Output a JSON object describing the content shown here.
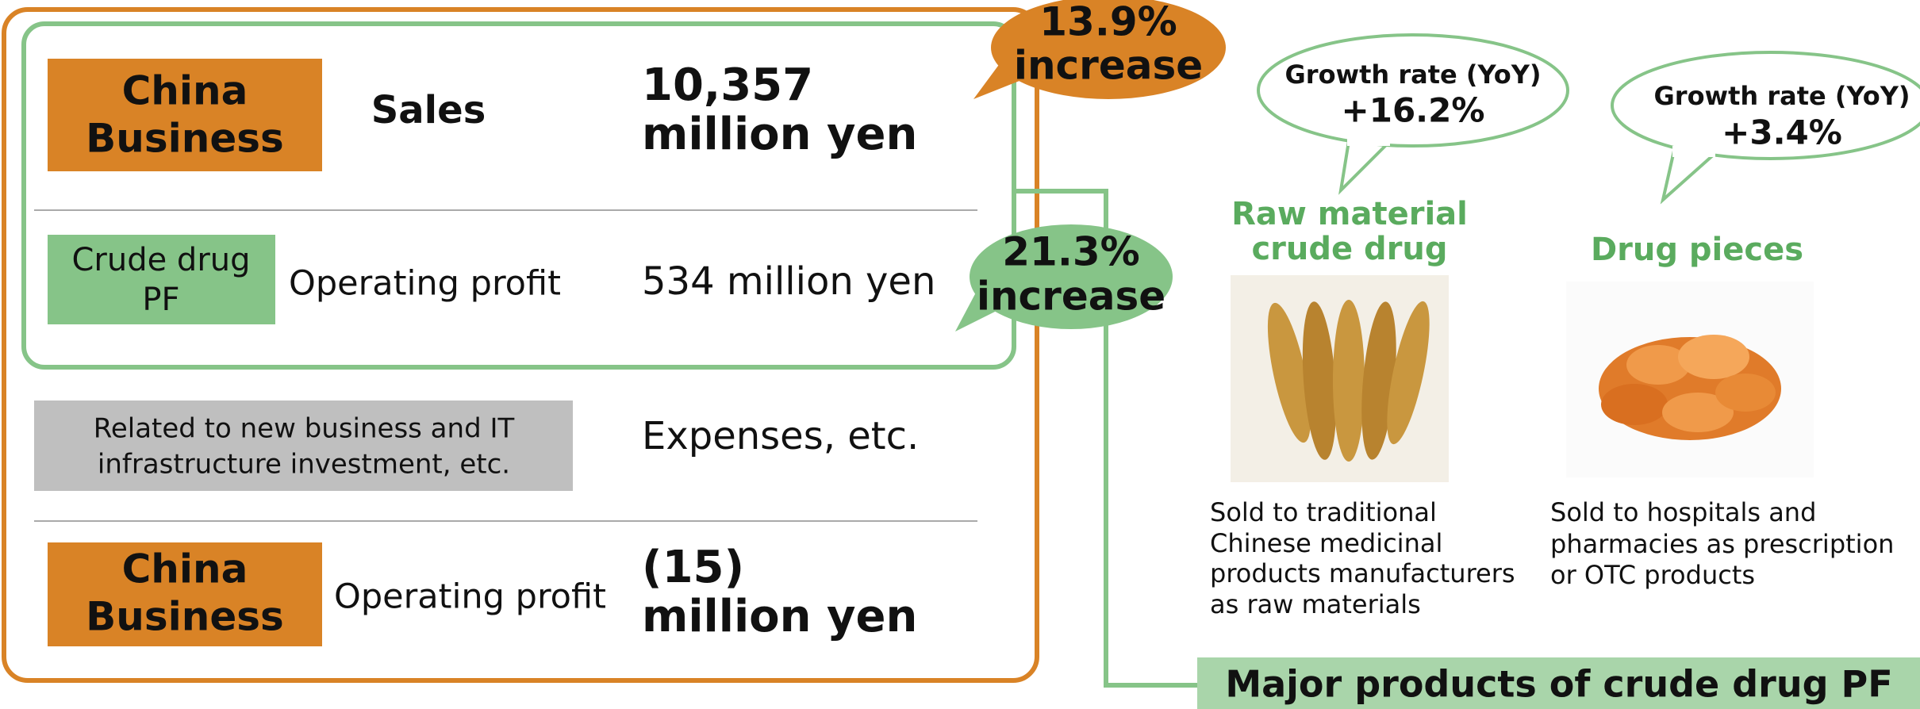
{
  "left_panel": {
    "sales_row": {
      "segment": [
        "China",
        "Business"
      ],
      "item": "Sales",
      "value": [
        "10,357",
        "million yen"
      ]
    },
    "pf_row": {
      "segment": [
        "Crude drug",
        "PF"
      ],
      "item": "Operating profit",
      "value": "534 million yen"
    },
    "expense_row": {
      "segment": [
        "Related to new business and IT",
        "infrastructure investment, etc."
      ],
      "value": "Expenses, etc."
    },
    "total_row": {
      "segment": [
        "China",
        "Business"
      ],
      "item": "Operating profit",
      "value": [
        "(15)",
        "million yen"
      ]
    }
  },
  "callouts": {
    "sales_increase": [
      "13.9%",
      "increase"
    ],
    "pf_increase": [
      "21.3%",
      "increase"
    ]
  },
  "products": {
    "title": "Major products of crude drug PF",
    "items": [
      {
        "name": [
          "Raw material",
          "crude drug"
        ],
        "growth_label": "Growth rate (YoY)",
        "growth": "+16.2%",
        "description": [
          "Sold to traditional",
          "Chinese medicinal",
          "products manufacturers",
          "as raw materials"
        ]
      },
      {
        "name": [
          "Drug pieces"
        ],
        "growth_label": "Growth rate (YoY)",
        "growth": "+3.4%",
        "description": [
          "Sold to hospitals and",
          "pharmacies as prescription",
          "or OTC products"
        ]
      }
    ]
  }
}
